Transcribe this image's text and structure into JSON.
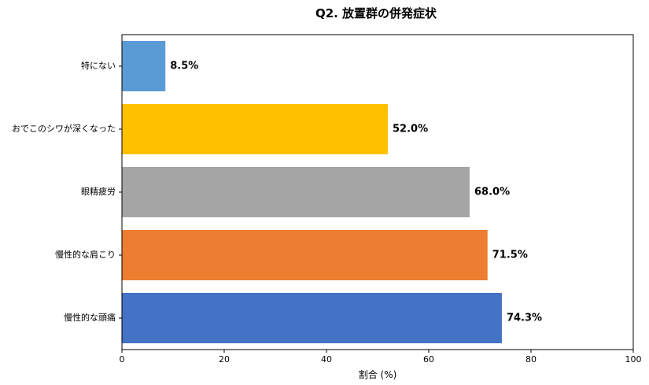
{
  "chart_data": {
    "type": "bar",
    "orientation": "horizontal",
    "title": "Q2. 放置群の併発症状",
    "xlabel": "割合 (%)",
    "ylabel": "",
    "xlim": [
      0,
      100
    ],
    "xticks": [
      "0",
      "20",
      "40",
      "60",
      "80",
      "100"
    ],
    "categories": [
      "慢性的な頭痛",
      "慢性的な肩こり",
      "眼精疲労",
      "おでこのシワが深くなった",
      "特にない"
    ],
    "values": [
      74.3,
      71.5,
      68.0,
      52.0,
      8.5
    ],
    "value_labels": [
      "74.3%",
      "71.5%",
      "68.0%",
      "52.0%",
      "8.5%"
    ],
    "colors": [
      "#4472c4",
      "#ed7d31",
      "#a5a5a5",
      "#ffc000",
      "#5b9bd5"
    ],
    "grid": false
  }
}
